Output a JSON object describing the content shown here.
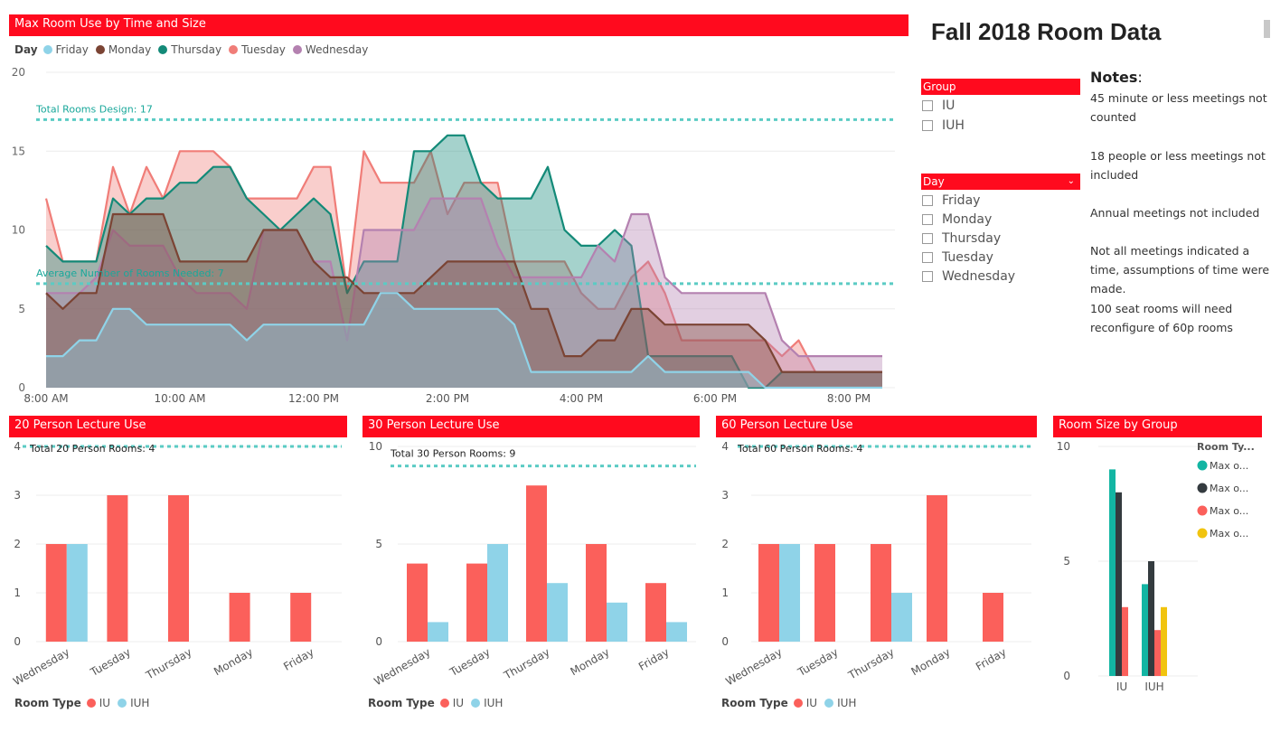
{
  "page_title": "Fall 2018 Room Data",
  "colors": {
    "header": "#ff0a1e",
    "friday": "#8fd3e8",
    "monday": "#7b4434",
    "thursday": "#138a78",
    "tuesday": "#f07d78",
    "wednesday": "#b481b0",
    "iu": "#fb605b",
    "iuh": "#8fd3e8",
    "ref_line": "#5bcbc4"
  },
  "slicers": {
    "group": {
      "title": "Group",
      "items": [
        "IU",
        "IUH"
      ]
    },
    "day": {
      "title": "Day",
      "items": [
        "Friday",
        "Monday",
        "Thursday",
        "Tuesday",
        "Wednesday"
      ]
    }
  },
  "notes": {
    "title": "Notes",
    "items": [
      "45 minute or less meetings not counted",
      "18 people or less meetings not included",
      "Annual meetings not included",
      "Not all meetings indicated a time, assumptions of time were made.",
      "100 seat rooms will need reconfigure of 60p rooms"
    ]
  },
  "chart_data": [
    {
      "type": "area",
      "title": "Max Room Use by Time and Size",
      "legend_title": "Day",
      "legend": [
        "Friday",
        "Monday",
        "Thursday",
        "Tuesday",
        "Wednesday"
      ],
      "ylim": [
        0,
        20
      ],
      "yticks": [
        "0",
        "5",
        "10",
        "15",
        "20"
      ],
      "xticks": [
        "8:00 AM",
        "10:00 AM",
        "12:00 PM",
        "2:00 PM",
        "4:00 PM",
        "6:00 PM",
        "8:00 PM"
      ],
      "x_hours": [
        8,
        8.25,
        8.5,
        8.75,
        9,
        9.25,
        9.5,
        9.75,
        10,
        10.25,
        10.5,
        10.75,
        11,
        11.25,
        11.5,
        11.75,
        12,
        12.25,
        12.5,
        12.75,
        13,
        13.25,
        13.5,
        13.75,
        14,
        14.25,
        14.5,
        14.75,
        15,
        15.25,
        15.5,
        15.75,
        16,
        16.25,
        16.5,
        16.75,
        17,
        17.25,
        17.5,
        17.75,
        18,
        18.25,
        18.5,
        18.75,
        19,
        19.25,
        19.5,
        19.75,
        20,
        20.25,
        20.5
      ],
      "series": [
        {
          "name": "Tuesday",
          "values": [
            12,
            8,
            8,
            8,
            14,
            11,
            14,
            12,
            15,
            15,
            15,
            14,
            12,
            12,
            12,
            12,
            14,
            14,
            6,
            15,
            13,
            13,
            13,
            15,
            11,
            13,
            13,
            13,
            8,
            8,
            8,
            8,
            6,
            5,
            5,
            7,
            8,
            6,
            3,
            3,
            3,
            3,
            3,
            3,
            2,
            3,
            1,
            1,
            1,
            1,
            1
          ]
        },
        {
          "name": "Thursday",
          "values": [
            9,
            8,
            8,
            8,
            12,
            11,
            12,
            12,
            13,
            13,
            14,
            14,
            12,
            11,
            10,
            11,
            12,
            11,
            6,
            8,
            8,
            8,
            15,
            15,
            16,
            16,
            13,
            12,
            12,
            12,
            14,
            10,
            9,
            9,
            10,
            9,
            2,
            2,
            2,
            2,
            2,
            2,
            0,
            0,
            1,
            1,
            1,
            1,
            1,
            1,
            1
          ]
        },
        {
          "name": "Wednesday",
          "values": [
            6,
            6,
            6,
            7,
            10,
            9,
            9,
            9,
            7,
            6,
            6,
            6,
            5,
            10,
            10,
            10,
            8,
            8,
            3,
            10,
            10,
            10,
            10,
            12,
            12,
            12,
            12,
            9,
            7,
            7,
            7,
            7,
            7,
            9,
            8,
            11,
            11,
            7,
            6,
            6,
            6,
            6,
            6,
            6,
            3,
            2,
            2,
            2,
            2,
            2,
            2
          ]
        },
        {
          "name": "Monday",
          "values": [
            6,
            5,
            6,
            6,
            11,
            11,
            11,
            11,
            8,
            8,
            8,
            8,
            8,
            10,
            10,
            10,
            8,
            7,
            7,
            6,
            6,
            6,
            6,
            7,
            8,
            8,
            8,
            8,
            8,
            5,
            5,
            2,
            2,
            3,
            3,
            5,
            5,
            4,
            4,
            4,
            4,
            4,
            4,
            3,
            1,
            1,
            1,
            1,
            1,
            1,
            1
          ]
        },
        {
          "name": "Friday",
          "values": [
            2,
            2,
            3,
            3,
            5,
            5,
            4,
            4,
            4,
            4,
            4,
            4,
            3,
            4,
            4,
            4,
            4,
            4,
            4,
            4,
            6,
            6,
            5,
            5,
            5,
            5,
            5,
            5,
            4,
            1,
            1,
            1,
            1,
            1,
            1,
            1,
            2,
            1,
            1,
            1,
            1,
            1,
            1,
            0,
            0,
            0,
            0,
            0,
            0,
            0,
            0
          ]
        }
      ],
      "reference_lines": [
        {
          "label": "Total Rooms Design: 17",
          "value": 17
        },
        {
          "label": "Average Number of Rooms Needed: 7",
          "value": 6.6
        }
      ]
    },
    {
      "type": "bar",
      "title": "20 Person Lecture Use",
      "categories": [
        "Wednesday",
        "Tuesday",
        "Thursday",
        "Monday",
        "Friday"
      ],
      "series": [
        {
          "name": "IU",
          "values": [
            2,
            3,
            3,
            1,
            1
          ]
        },
        {
          "name": "IUH",
          "values": [
            2,
            0,
            0,
            0,
            0
          ]
        }
      ],
      "ylim": [
        0,
        4
      ],
      "yticks": [
        "0",
        "1",
        "2",
        "3",
        "4"
      ],
      "reference_line": {
        "label": "Total 20 Person Rooms: 4",
        "value": 4
      },
      "legend_title": "Room Type",
      "legend": [
        "IU",
        "IUH"
      ]
    },
    {
      "type": "bar",
      "title": "30 Person Lecture Use",
      "categories": [
        "Wednesday",
        "Tuesday",
        "Thursday",
        "Monday",
        "Friday"
      ],
      "series": [
        {
          "name": "IU",
          "values": [
            4,
            4,
            8,
            5,
            3
          ]
        },
        {
          "name": "IUH",
          "values": [
            1,
            5,
            3,
            2,
            1
          ]
        }
      ],
      "ylim": [
        0,
        10
      ],
      "yticks": [
        "0",
        "5",
        "10"
      ],
      "reference_line": {
        "label": "Total 30 Person Rooms: 9",
        "value": 9
      },
      "legend_title": "Room Type",
      "legend": [
        "IU",
        "IUH"
      ]
    },
    {
      "type": "bar",
      "title": "60 Person Lecture Use",
      "categories": [
        "Wednesday",
        "Tuesday",
        "Thursday",
        "Monday",
        "Friday"
      ],
      "series": [
        {
          "name": "IU",
          "values": [
            2,
            2,
            2,
            3,
            1
          ]
        },
        {
          "name": "IUH",
          "values": [
            2,
            0,
            1,
            0,
            0
          ]
        }
      ],
      "ylim": [
        0,
        4
      ],
      "yticks": [
        "0",
        "1",
        "2",
        "3",
        "4"
      ],
      "reference_line": {
        "label": "Total 60 Person Rooms: 4",
        "value": 4
      },
      "legend_title": "Room Type",
      "legend": [
        "IU",
        "IUH"
      ]
    },
    {
      "type": "bar",
      "title": "Room Size by Group",
      "categories": [
        "IU",
        "IUH"
      ],
      "series": [
        {
          "name": "Max o...",
          "color": "#13b5a3",
          "values": [
            9,
            4
          ]
        },
        {
          "name": "Max o...",
          "color": "#343b3f",
          "values": [
            8,
            5
          ]
        },
        {
          "name": "Max o...",
          "color": "#fb605b",
          "values": [
            3,
            2
          ]
        },
        {
          "name": "Max o...",
          "color": "#f1c40f",
          "values": [
            0,
            3
          ]
        }
      ],
      "ylim": [
        0,
        10
      ],
      "yticks": [
        "0",
        "5",
        "10"
      ],
      "legend_title": "Room Ty..."
    }
  ]
}
